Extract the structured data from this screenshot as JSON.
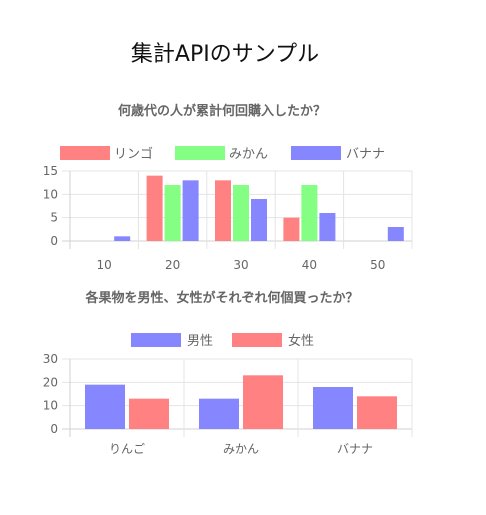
{
  "page": {
    "title": "集計APIのサンプル"
  },
  "chart_data": [
    {
      "type": "bar",
      "title": "何歳代の人が累計何回購入したか？",
      "categories": [
        "10",
        "20",
        "30",
        "40",
        "50"
      ],
      "series": [
        {
          "name": "リンゴ",
          "color": "#ff7a7a",
          "values": [
            0,
            14,
            13,
            5,
            0
          ]
        },
        {
          "name": "みかん",
          "color": "#7dff7d",
          "values": [
            0,
            12,
            12,
            12,
            0
          ]
        },
        {
          "name": "バナナ",
          "color": "#7f7fff",
          "values": [
            1,
            13,
            9,
            6,
            3
          ]
        }
      ],
      "ylim": [
        0,
        15
      ],
      "yticks": [
        "0",
        "5",
        "10",
        "15"
      ],
      "grid": true,
      "legend": "top"
    },
    {
      "type": "bar",
      "title": "各果物を男性、女性がそれぞれ何個買ったか？",
      "categories": [
        "りんご",
        "みかん",
        "バナナ"
      ],
      "series": [
        {
          "name": "男性",
          "color": "#7f7fff",
          "values": [
            19,
            13,
            18
          ]
        },
        {
          "name": "女性",
          "color": "#ff7a7a",
          "values": [
            13,
            23,
            14
          ]
        }
      ],
      "ylim": [
        0,
        30
      ],
      "yticks": [
        "0",
        "10",
        "20",
        "30"
      ],
      "grid": true,
      "legend": "top"
    }
  ]
}
